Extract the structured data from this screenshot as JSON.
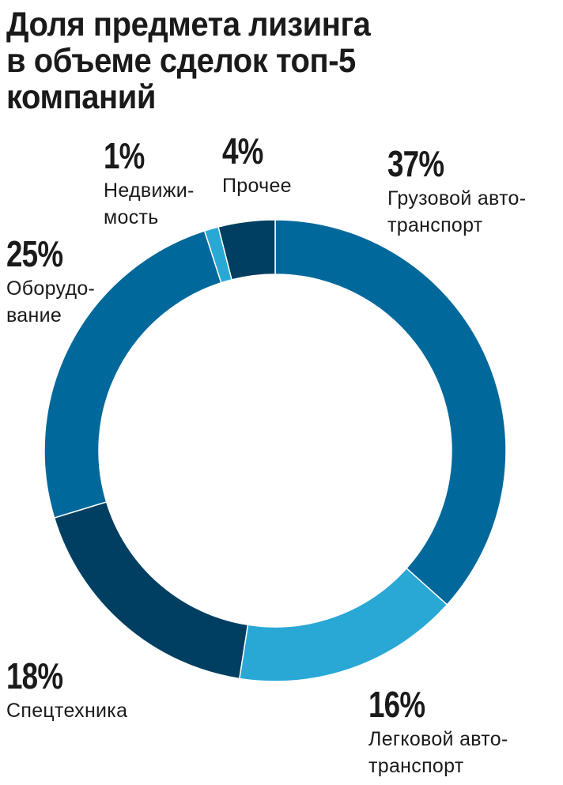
{
  "title_lines": [
    "Доля предмета лизинга",
    "в объеме сделок топ-5",
    "компаний"
  ],
  "chart_data": {
    "type": "pie",
    "donut": true,
    "title": "Доля предмета лизинга в объеме сделок топ-5 компаний",
    "slices": [
      {
        "value": 37,
        "pct_label": "37%",
        "label_lines": [
          "Грузовой авто-",
          "транспорт"
        ],
        "color": "#00689b"
      },
      {
        "value": 16,
        "pct_label": "16%",
        "label_lines": [
          "Легковой авто-",
          "транспорт"
        ],
        "color": "#29a8d6"
      },
      {
        "value": 18,
        "pct_label": "18%",
        "label_lines": [
          "Спецтехника"
        ],
        "color": "#003f62"
      },
      {
        "value": 25,
        "pct_label": "25%",
        "label_lines": [
          "Оборудо-",
          "вание"
        ],
        "color": "#00689b"
      },
      {
        "value": 1,
        "pct_label": "1%",
        "label_lines": [
          "Недвижи-",
          "мость"
        ],
        "color": "#29a8d6"
      },
      {
        "value": 4,
        "pct_label": "4%",
        "label_lines": [
          "Прочее"
        ],
        "color": "#003f62"
      }
    ]
  }
}
